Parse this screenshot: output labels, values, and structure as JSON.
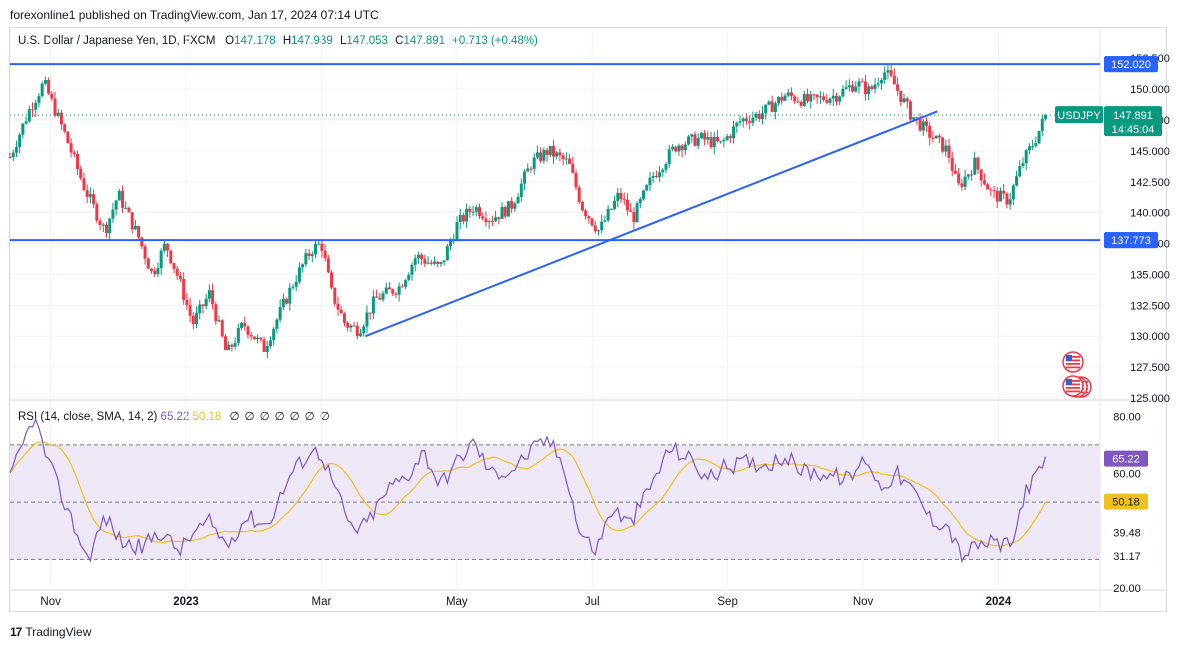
{
  "header": {
    "published": "forexonline1 published on TradingView.com, Jan 17, 2024 07:14 UTC"
  },
  "legend": {
    "symbol": "U.S. Dollar / Japanese Yen, 1D, FXCM",
    "o_label": "O",
    "o": "147.178",
    "h_label": "H",
    "h": "147.939",
    "l_label": "L",
    "l": "147.053",
    "c_label": "C",
    "c": "147.891",
    "change": "+0.713 (+0.48%)"
  },
  "rsi_legend": {
    "title": "RSI (14, close, SMA, 14, 2)",
    "rsi": "65.22",
    "sma": "50.18",
    "icons": [
      "eye-off-icon",
      "eye-off-icon",
      "eye-off-icon",
      "eye-off-icon",
      "eye-off-icon",
      "eye-off-icon",
      "eye-off-icon"
    ]
  },
  "footer": {
    "brand": "TradingView",
    "logo": "17"
  },
  "colors": {
    "up": "#089981",
    "down": "#f23645",
    "line": "#2962ff",
    "rsi": "#7e57c2",
    "rsi_sma": "#f0c020",
    "rsi_band": "#ede7f6",
    "price_badge": "#089981",
    "level_badge": "#2962ff"
  },
  "chart_data": [
    {
      "type": "candlestick",
      "title": "U.S. Dollar / Japanese Yen, 1D, FXCM",
      "ylim": [
        125,
        153
      ],
      "y_ticks": [
        "125.000",
        "127.500",
        "130.000",
        "132.500",
        "135.000",
        "137.500",
        "140.000",
        "142.500",
        "145.000",
        "147.500",
        "150.000",
        "152.500"
      ],
      "x_ticks": [
        "Nov",
        "2023",
        "Mar",
        "May",
        "Jul",
        "Sep",
        "Nov",
        "2024"
      ],
      "x_tick_months": [
        0.6,
        2.6,
        4.6,
        6.6,
        8.6,
        10.6,
        12.6,
        14.6
      ],
      "price_anchors": [
        {
          "m": 0.0,
          "v": 144.5
        },
        {
          "m": 0.3,
          "v": 148.5
        },
        {
          "m": 0.5,
          "v": 150.5
        },
        {
          "m": 0.8,
          "v": 146.5
        },
        {
          "m": 1.1,
          "v": 142.0
        },
        {
          "m": 1.4,
          "v": 138.5
        },
        {
          "m": 1.6,
          "v": 141.5
        },
        {
          "m": 1.9,
          "v": 138.0
        },
        {
          "m": 2.1,
          "v": 135.0
        },
        {
          "m": 2.3,
          "v": 137.5
        },
        {
          "m": 2.5,
          "v": 134.5
        },
        {
          "m": 2.7,
          "v": 131.0
        },
        {
          "m": 2.95,
          "v": 133.5
        },
        {
          "m": 3.2,
          "v": 128.5
        },
        {
          "m": 3.45,
          "v": 131.0
        },
        {
          "m": 3.75,
          "v": 129.0
        },
        {
          "m": 4.2,
          "v": 134.5
        },
        {
          "m": 4.45,
          "v": 137.0
        },
        {
          "m": 4.6,
          "v": 137.5
        },
        {
          "m": 4.75,
          "v": 133.5
        },
        {
          "m": 4.95,
          "v": 131.0
        },
        {
          "m": 5.15,
          "v": 130.5
        },
        {
          "m": 5.4,
          "v": 133.0
        },
        {
          "m": 5.75,
          "v": 134.0
        },
        {
          "m": 6.0,
          "v": 136.5
        },
        {
          "m": 6.35,
          "v": 135.5
        },
        {
          "m": 6.6,
          "v": 139.0
        },
        {
          "m": 6.85,
          "v": 140.5
        },
        {
          "m": 7.1,
          "v": 139.5
        },
        {
          "m": 7.4,
          "v": 140.5
        },
        {
          "m": 7.7,
          "v": 144.0
        },
        {
          "m": 7.95,
          "v": 145.0
        },
        {
          "m": 8.25,
          "v": 144.0
        },
        {
          "m": 8.45,
          "v": 140.5
        },
        {
          "m": 8.7,
          "v": 138.5
        },
        {
          "m": 9.0,
          "v": 141.5
        },
        {
          "m": 9.2,
          "v": 139.5
        },
        {
          "m": 9.5,
          "v": 143.0
        },
        {
          "m": 9.85,
          "v": 145.5
        },
        {
          "m": 10.2,
          "v": 146.0
        },
        {
          "m": 10.5,
          "v": 145.5
        },
        {
          "m": 10.8,
          "v": 147.5
        },
        {
          "m": 11.1,
          "v": 148.0
        },
        {
          "m": 11.45,
          "v": 149.5
        },
        {
          "m": 11.8,
          "v": 149.0
        },
        {
          "m": 12.2,
          "v": 149.5
        },
        {
          "m": 12.5,
          "v": 150.5
        },
        {
          "m": 12.7,
          "v": 149.8
        },
        {
          "m": 12.9,
          "v": 151.5
        },
        {
          "m": 13.05,
          "v": 150.5
        },
        {
          "m": 13.3,
          "v": 148.0
        },
        {
          "m": 13.55,
          "v": 146.5
        },
        {
          "m": 13.85,
          "v": 145.0
        },
        {
          "m": 14.0,
          "v": 142.0
        },
        {
          "m": 14.25,
          "v": 144.0
        },
        {
          "m": 14.5,
          "v": 141.5
        },
        {
          "m": 14.75,
          "v": 141.0
        },
        {
          "m": 14.95,
          "v": 144.0
        },
        {
          "m": 15.15,
          "v": 146.0
        },
        {
          "m": 15.3,
          "v": 147.89
        }
      ],
      "horizontal_levels": [
        152.02,
        137.773
      ],
      "level_labels": [
        "152.020",
        "137.773"
      ],
      "trendline": {
        "from": {
          "m": 5.25,
          "v": 130.0
        },
        "to": {
          "m": 13.7,
          "v": 148.2
        }
      },
      "last_price": 147.891,
      "last_label": {
        "symbol": "USDJPY",
        "price": "147.891",
        "countdown": "14:45:04"
      }
    },
    {
      "type": "line",
      "title": "RSI (14, close, SMA, 14, 2)",
      "ylim": [
        20,
        85
      ],
      "y_ticks": [
        "20.00",
        "31.17",
        "39.48",
        "60.00",
        "80.00"
      ],
      "band": [
        30,
        70
      ],
      "midline": 50,
      "rsi_anchors": [
        {
          "m": 0.0,
          "v": 58
        },
        {
          "m": 0.35,
          "v": 80
        },
        {
          "m": 0.55,
          "v": 65
        },
        {
          "m": 0.8,
          "v": 50
        },
        {
          "m": 1.15,
          "v": 30
        },
        {
          "m": 1.4,
          "v": 45
        },
        {
          "m": 1.65,
          "v": 36
        },
        {
          "m": 1.95,
          "v": 34
        },
        {
          "m": 2.2,
          "v": 40
        },
        {
          "m": 2.5,
          "v": 33
        },
        {
          "m": 2.75,
          "v": 40
        },
        {
          "m": 2.95,
          "v": 43
        },
        {
          "m": 3.2,
          "v": 35
        },
        {
          "m": 3.5,
          "v": 45
        },
        {
          "m": 3.8,
          "v": 42
        },
        {
          "m": 4.15,
          "v": 60
        },
        {
          "m": 4.45,
          "v": 68
        },
        {
          "m": 4.6,
          "v": 67
        },
        {
          "m": 4.85,
          "v": 52
        },
        {
          "m": 5.05,
          "v": 40
        },
        {
          "m": 5.25,
          "v": 42
        },
        {
          "m": 5.6,
          "v": 55
        },
        {
          "m": 5.9,
          "v": 60
        },
        {
          "m": 6.1,
          "v": 68
        },
        {
          "m": 6.35,
          "v": 56
        },
        {
          "m": 6.6,
          "v": 64
        },
        {
          "m": 6.85,
          "v": 71
        },
        {
          "m": 7.1,
          "v": 60
        },
        {
          "m": 7.4,
          "v": 61
        },
        {
          "m": 7.7,
          "v": 68
        },
        {
          "m": 7.95,
          "v": 72
        },
        {
          "m": 8.2,
          "v": 62
        },
        {
          "m": 8.4,
          "v": 40
        },
        {
          "m": 8.65,
          "v": 33
        },
        {
          "m": 8.9,
          "v": 48
        },
        {
          "m": 9.15,
          "v": 42
        },
        {
          "m": 9.45,
          "v": 55
        },
        {
          "m": 9.75,
          "v": 69
        },
        {
          "m": 10.05,
          "v": 65
        },
        {
          "m": 10.3,
          "v": 58
        },
        {
          "m": 10.55,
          "v": 62
        },
        {
          "m": 10.85,
          "v": 64
        },
        {
          "m": 11.15,
          "v": 63
        },
        {
          "m": 11.45,
          "v": 66
        },
        {
          "m": 11.7,
          "v": 61
        },
        {
          "m": 12.0,
          "v": 60
        },
        {
          "m": 12.4,
          "v": 58
        },
        {
          "m": 12.65,
          "v": 66
        },
        {
          "m": 12.85,
          "v": 55
        },
        {
          "m": 13.1,
          "v": 60
        },
        {
          "m": 13.4,
          "v": 52
        },
        {
          "m": 13.6,
          "v": 44
        },
        {
          "m": 13.85,
          "v": 42
        },
        {
          "m": 14.05,
          "v": 31
        },
        {
          "m": 14.3,
          "v": 35
        },
        {
          "m": 14.55,
          "v": 36
        },
        {
          "m": 14.8,
          "v": 34
        },
        {
          "m": 15.0,
          "v": 55
        },
        {
          "m": 15.15,
          "v": 58
        },
        {
          "m": 15.3,
          "v": 65.22
        }
      ],
      "rsi_last": 65.22,
      "sma_last": 50.18,
      "last_labels": [
        "65.22",
        "50.18"
      ]
    }
  ]
}
